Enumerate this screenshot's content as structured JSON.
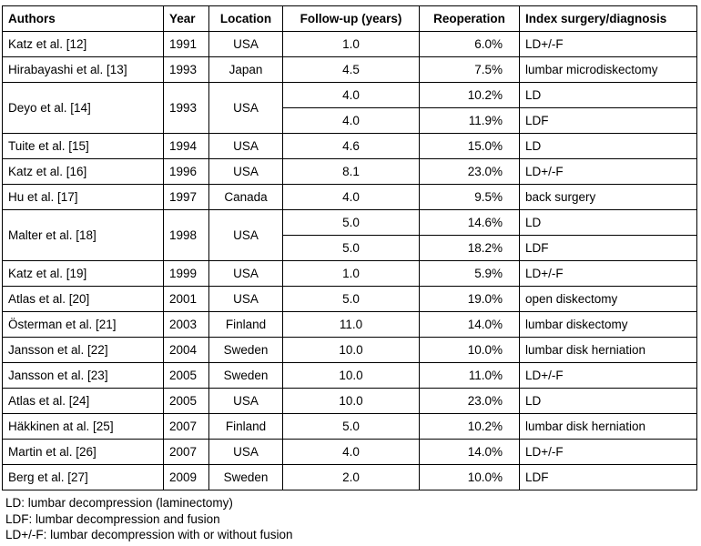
{
  "table": {
    "headers": [
      "Authors",
      "Year",
      "Location",
      "Follow-up (years)",
      "Reoperation",
      "Index surgery/diagnosis"
    ],
    "rows": [
      {
        "author": "Katz et al. [12]",
        "year": "1991",
        "location": "USA",
        "entries": [
          {
            "followup": "1.0",
            "reoperation": "6.0%",
            "index": "LD+/-F"
          }
        ]
      },
      {
        "author": "Hirabayashi et al. [13]",
        "year": "1993",
        "location": "Japan",
        "entries": [
          {
            "followup": "4.5",
            "reoperation": "7.5%",
            "index": "lumbar microdiskectomy"
          }
        ]
      },
      {
        "author": "Deyo et al. [14]",
        "year": "1993",
        "location": "USA",
        "entries": [
          {
            "followup": "4.0",
            "reoperation": "10.2%",
            "index": "LD"
          },
          {
            "followup": "4.0",
            "reoperation": "11.9%",
            "index": "LDF"
          }
        ]
      },
      {
        "author": "Tuite et al. [15]",
        "year": "1994",
        "location": "USA",
        "entries": [
          {
            "followup": "4.6",
            "reoperation": "15.0%",
            "index": "LD"
          }
        ]
      },
      {
        "author": "Katz et al. [16]",
        "year": "1996",
        "location": "USA",
        "entries": [
          {
            "followup": "8.1",
            "reoperation": "23.0%",
            "index": "LD+/-F"
          }
        ]
      },
      {
        "author": "Hu et al. [17]",
        "year": "1997",
        "location": "Canada",
        "entries": [
          {
            "followup": "4.0",
            "reoperation": "9.5%",
            "index": "back surgery"
          }
        ]
      },
      {
        "author": "Malter et al. [18]",
        "year": "1998",
        "location": "USA",
        "entries": [
          {
            "followup": "5.0",
            "reoperation": "14.6%",
            "index": "LD"
          },
          {
            "followup": "5.0",
            "reoperation": "18.2%",
            "index": "LDF"
          }
        ]
      },
      {
        "author": "Katz et al. [19]",
        "year": "1999",
        "location": "USA",
        "entries": [
          {
            "followup": "1.0",
            "reoperation": "5.9%",
            "index": "LD+/-F"
          }
        ]
      },
      {
        "author": "Atlas et al. [20]",
        "year": "2001",
        "location": "USA",
        "entries": [
          {
            "followup": "5.0",
            "reoperation": "19.0%",
            "index": "open diskectomy"
          }
        ]
      },
      {
        "author": "Österman et al. [21]",
        "year": "2003",
        "location": "Finland",
        "entries": [
          {
            "followup": "11.0",
            "reoperation": "14.0%",
            "index": "lumbar diskectomy"
          }
        ]
      },
      {
        "author": "Jansson et al. [22]",
        "year": "2004",
        "location": "Sweden",
        "entries": [
          {
            "followup": "10.0",
            "reoperation": "10.0%",
            "index": "lumbar disk herniation"
          }
        ]
      },
      {
        "author": "Jansson et al. [23]",
        "year": "2005",
        "location": "Sweden",
        "entries": [
          {
            "followup": "10.0",
            "reoperation": "11.0%",
            "index": "LD+/-F"
          }
        ]
      },
      {
        "author": "Atlas et al. [24]",
        "year": "2005",
        "location": "USA",
        "entries": [
          {
            "followup": "10.0",
            "reoperation": "23.0%",
            "index": "LD"
          }
        ]
      },
      {
        "author": "Häkkinen at al. [25]",
        "year": "2007",
        "location": "Finland",
        "entries": [
          {
            "followup": "5.0",
            "reoperation": "10.2%",
            "index": "lumbar disk herniation"
          }
        ]
      },
      {
        "author": "Martin et al. [26]",
        "year": "2007",
        "location": "USA",
        "entries": [
          {
            "followup": "4.0",
            "reoperation": "14.0%",
            "index": "LD+/-F"
          }
        ]
      },
      {
        "author": "Berg et al. [27]",
        "year": "2009",
        "location": "Sweden",
        "entries": [
          {
            "followup": "2.0",
            "reoperation": "10.0%",
            "index": "LDF"
          }
        ]
      }
    ]
  },
  "footnotes": [
    "LD: lumbar decompression (laminectomy)",
    "LDF: lumbar decompression and fusion",
    "LD+/-F: lumbar decompression with or without fusion"
  ]
}
